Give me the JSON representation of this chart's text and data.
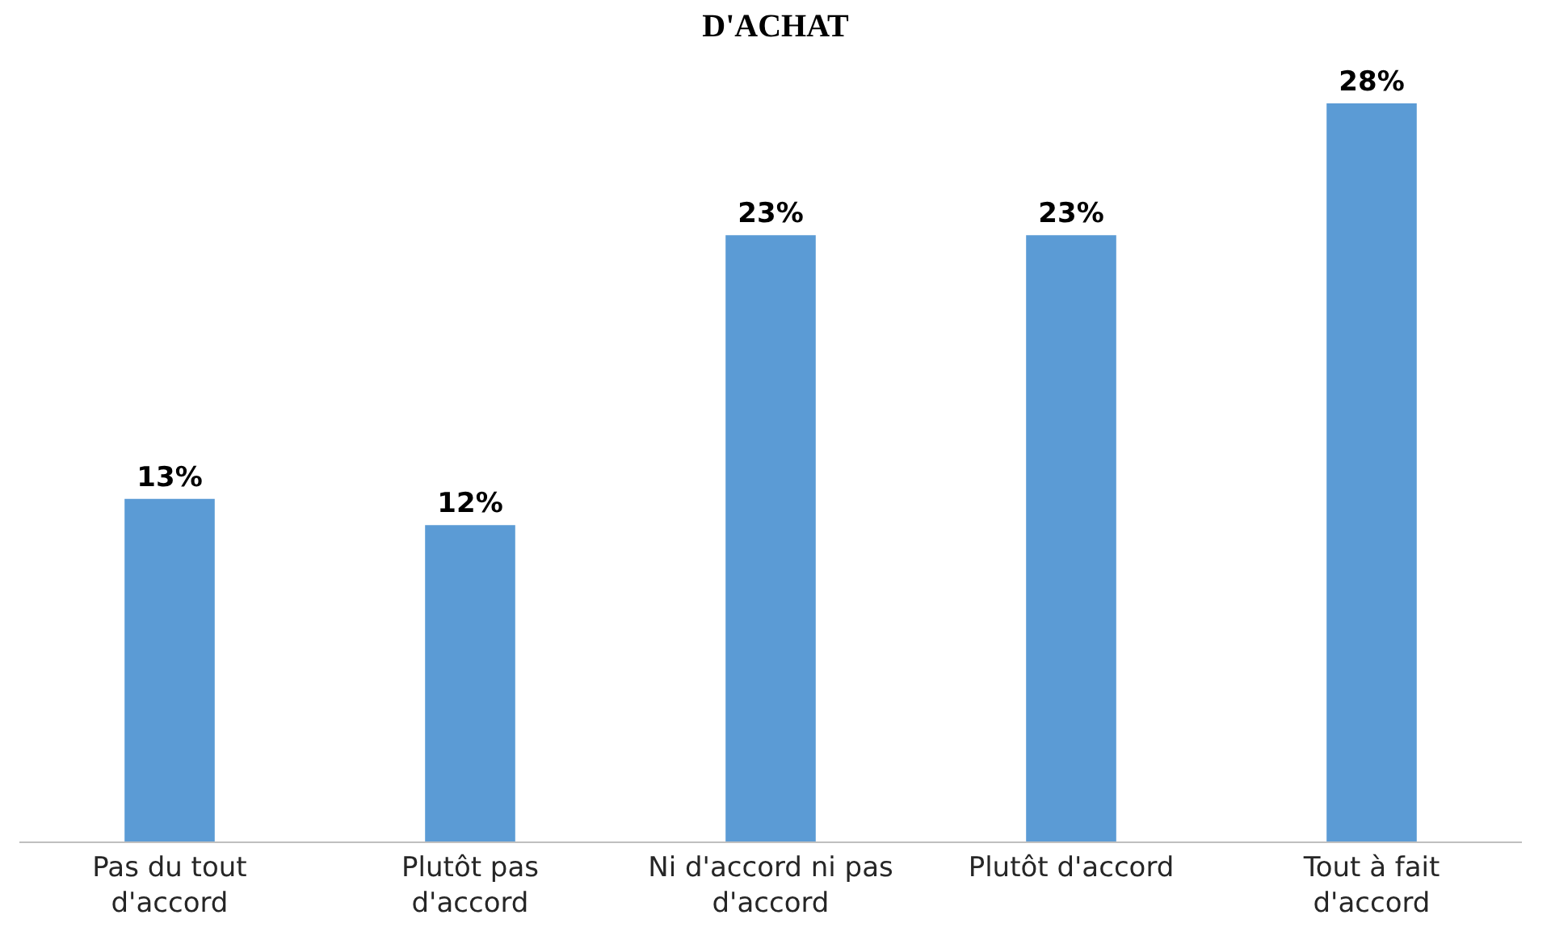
{
  "chart_data": {
    "type": "bar",
    "title": "D'ACHAT",
    "categories": [
      "Pas du tout d'accord",
      "Plutôt pas d'accord",
      "Ni d'accord ni pas d'accord",
      "Plutôt d'accord",
      "Tout à fait d'accord"
    ],
    "values": [
      13,
      12,
      23,
      23,
      28
    ],
    "value_labels": [
      "13%",
      "12%",
      "23%",
      "23%",
      "28%"
    ],
    "color": "#5b9bd5"
  }
}
